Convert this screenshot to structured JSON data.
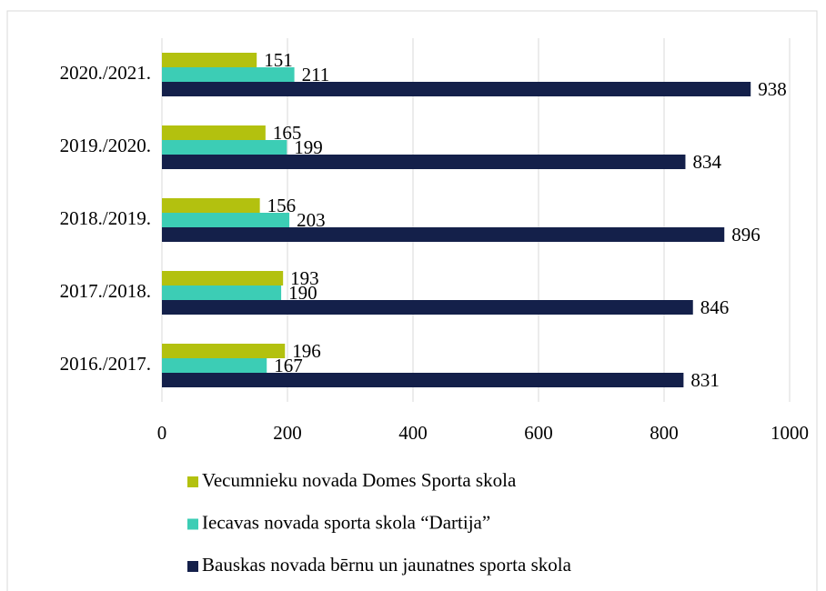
{
  "chart_data": {
    "type": "barh",
    "categories": [
      "2016./2017.",
      "2017./2018.",
      "2018./2019.",
      "2019./2020.",
      "2020./2021."
    ],
    "series": [
      {
        "name": "Vecumnieku novada Domes Sporta skola",
        "color": "#b3c10f",
        "values": [
          196,
          193,
          156,
          165,
          151
        ]
      },
      {
        "name": "Iecavas novada sporta skola “Dartija”",
        "color": "#3ccdb5",
        "values": [
          167,
          190,
          203,
          199,
          211
        ]
      },
      {
        "name": "Bauskas novada bērnu un jaunatnes sporta skola",
        "color": "#14204a",
        "values": [
          831,
          846,
          896,
          834,
          938
        ]
      }
    ],
    "xlim": [
      0,
      1000
    ],
    "xticks": [
      0,
      200,
      400,
      600,
      800,
      1000
    ],
    "grid": true,
    "legend": "bottom"
  }
}
